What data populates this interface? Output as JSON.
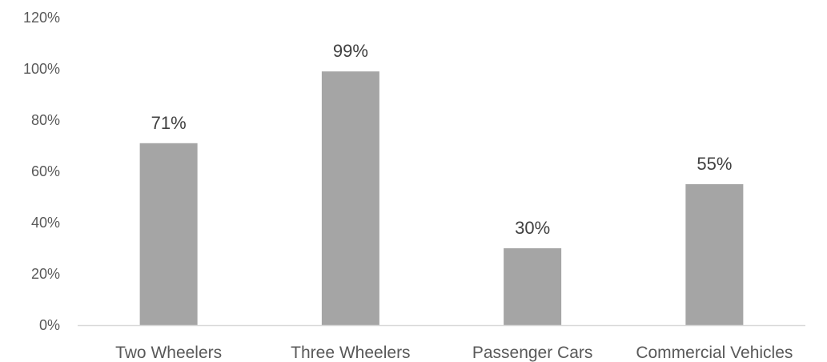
{
  "chart_data": {
    "type": "bar",
    "title": "",
    "xlabel": "",
    "ylabel": "",
    "categories": [
      "Two Wheelers",
      "Three Wheelers",
      "Passenger Cars",
      "Commercial Vehicles"
    ],
    "values": [
      71,
      99,
      30,
      55
    ],
    "data_labels": [
      "71%",
      "99%",
      "30%",
      "55%"
    ],
    "ylim": [
      0,
      120
    ],
    "yticks": [
      0,
      20,
      40,
      60,
      80,
      100,
      120
    ],
    "ytick_labels": [
      "0%",
      "20%",
      "40%",
      "60%",
      "80%",
      "100%",
      "120%"
    ],
    "grid": false,
    "legend": "none",
    "bar_color": "#a5a5a5",
    "axis_color": "#d9d9d9"
  }
}
